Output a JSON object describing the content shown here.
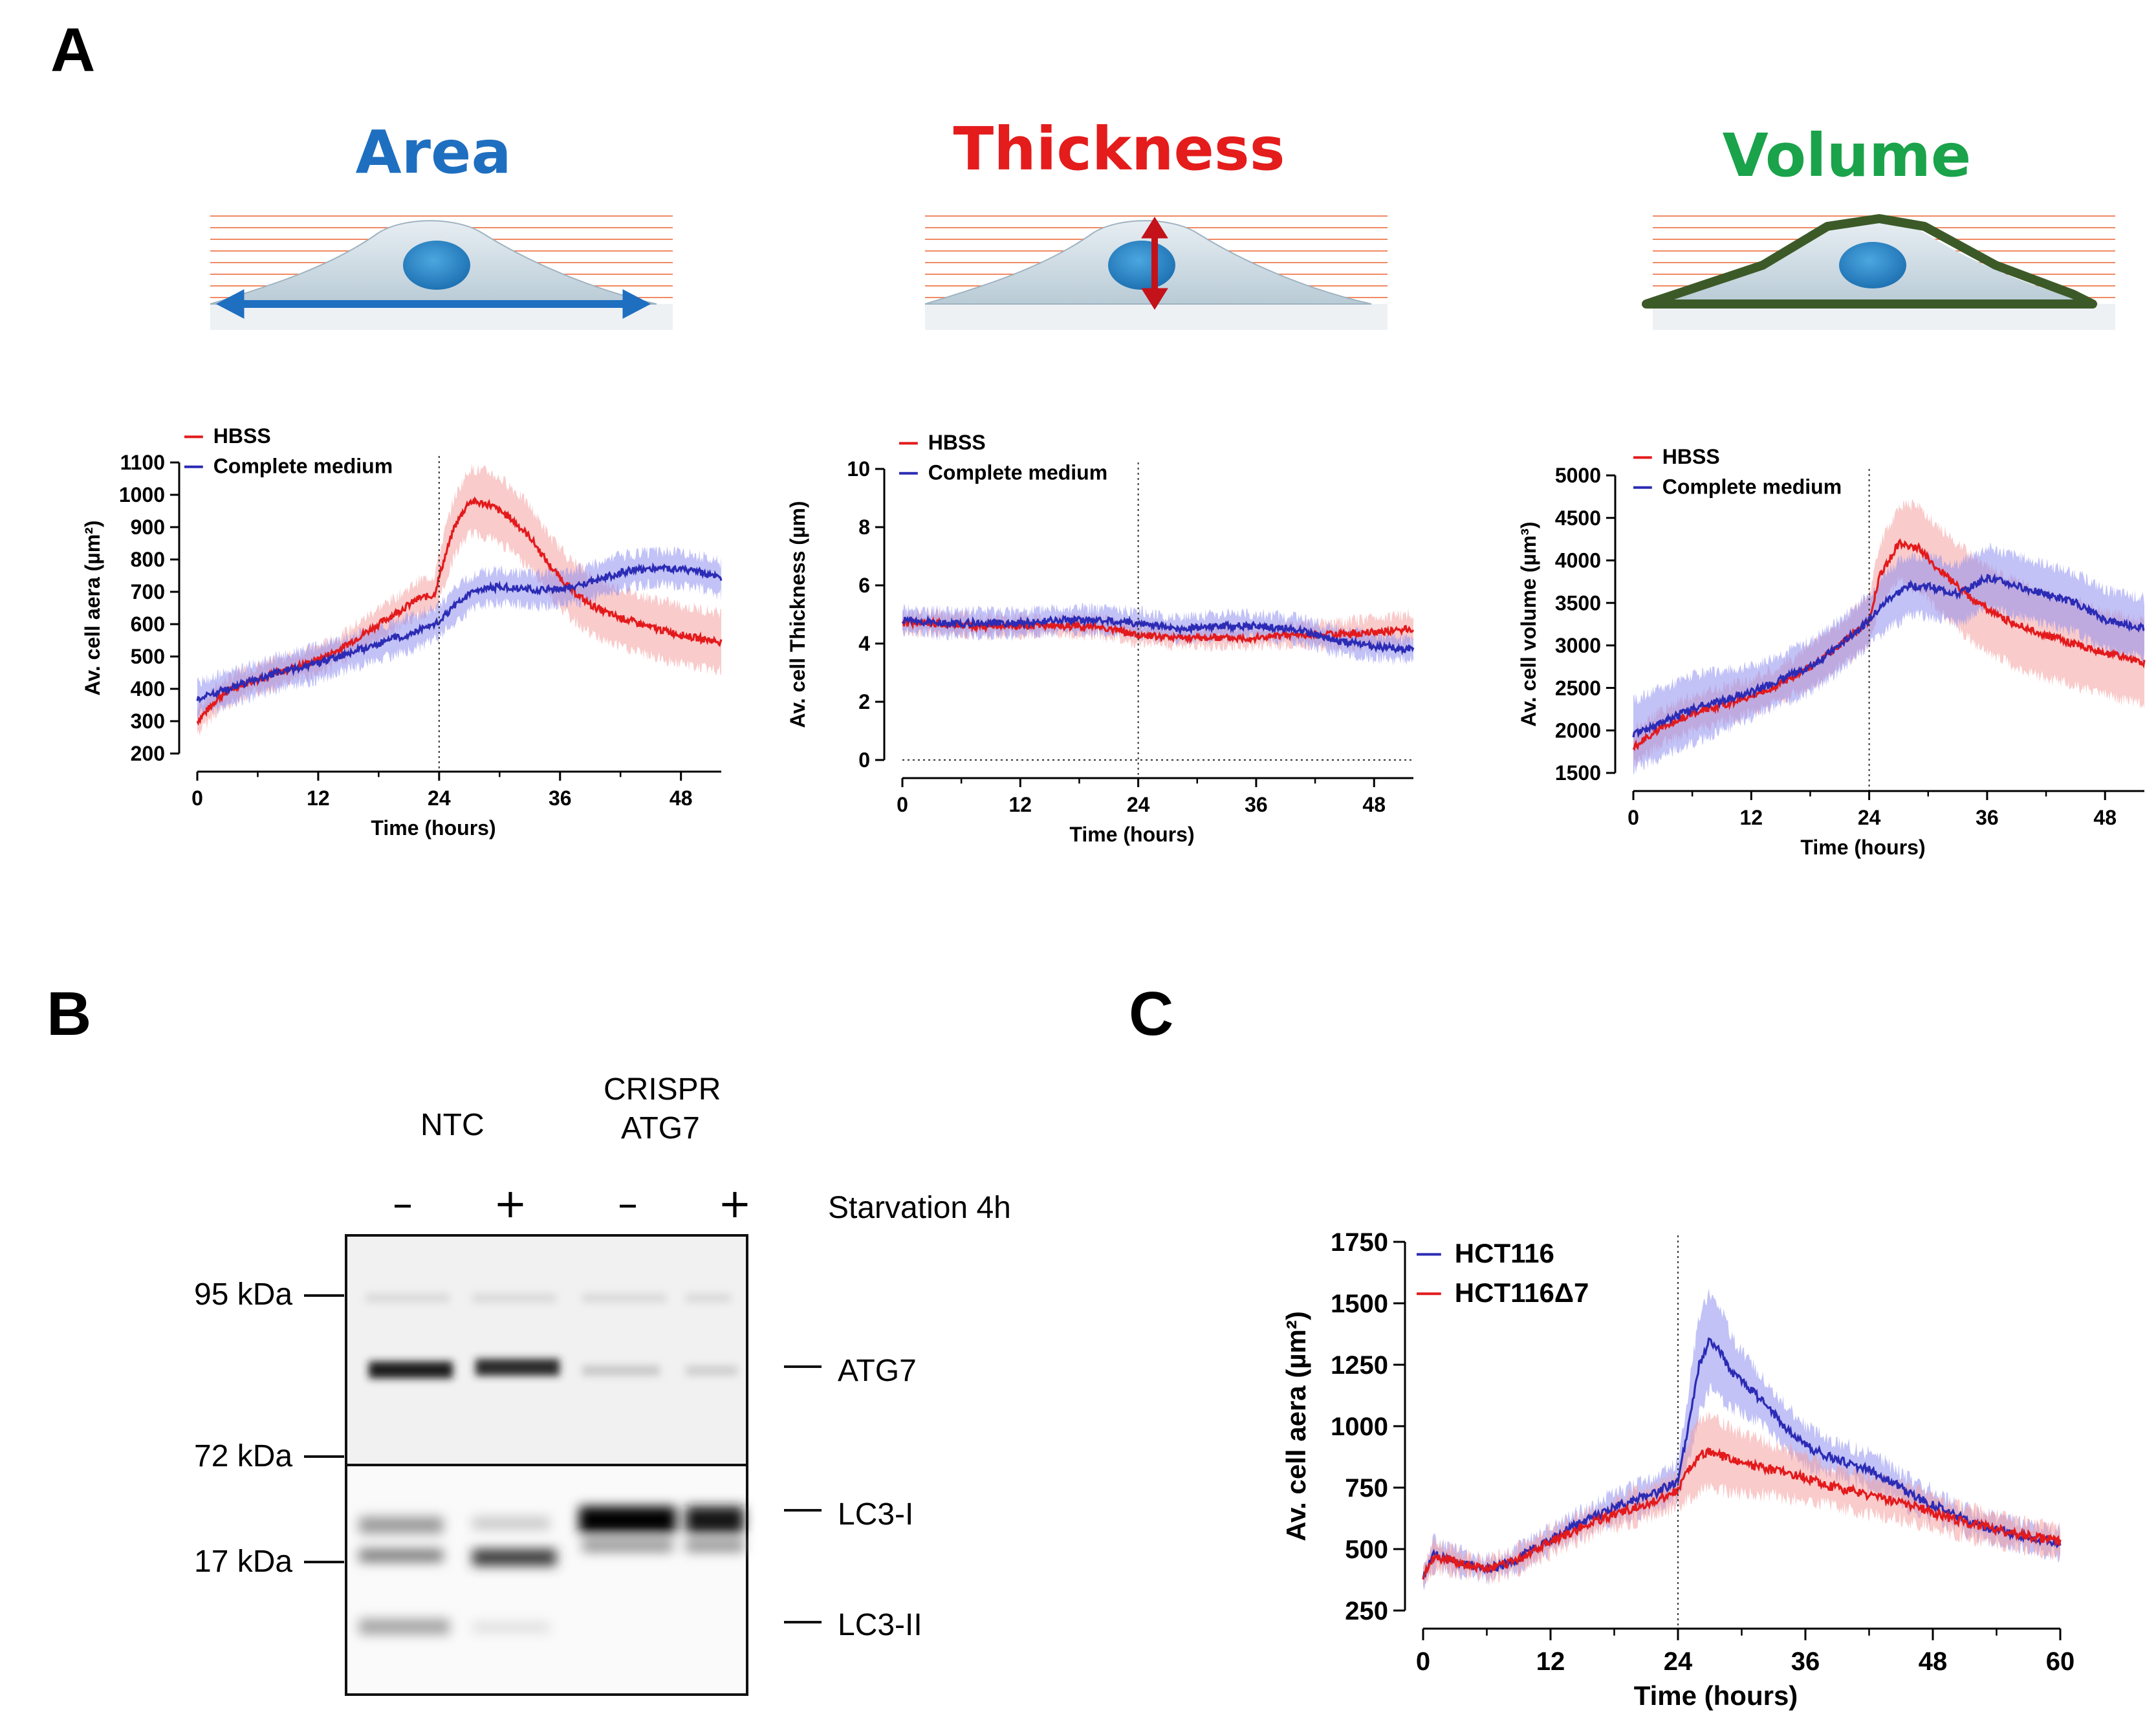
{
  "panels": {
    "a": "A",
    "b": "B",
    "c": "C"
  },
  "schematics": {
    "area_title": "Area",
    "thickness_title": "Thickness",
    "volume_title": "Volume",
    "colors": {
      "area": "#1f6fc0",
      "thickness": "#e41c1c",
      "volume": "#1aa34a",
      "outline": "#3c5a28"
    }
  },
  "blot": {
    "group1": "NTC",
    "group2_line1": "CRISPR",
    "group2_line2": "ATG7",
    "signs": [
      "–",
      "+",
      "–",
      "+"
    ],
    "treatment": "Starvation 4h",
    "markers": [
      "95 kDa",
      "72 kDa",
      "17 kDa"
    ],
    "bands": [
      "ATG7",
      "LC3-I",
      "LC3-II"
    ]
  },
  "chart_data": [
    {
      "id": "area",
      "type": "line",
      "title": "",
      "xlabel": "Time (hours)",
      "ylabel": "Av. cell aera (µm²)",
      "xlim": [
        0,
        52
      ],
      "ylim": [
        200,
        1100
      ],
      "xticks": [
        0,
        12,
        24,
        36,
        48
      ],
      "yticks": [
        200,
        300,
        400,
        500,
        600,
        700,
        800,
        900,
        1000,
        1100
      ],
      "vline": 24,
      "legend": "top-left",
      "series": [
        {
          "name": "HBSS",
          "color": "#e31a1c",
          "band_color": "#f4a0a0",
          "x": [
            0,
            2,
            4,
            6,
            8,
            10,
            12,
            14,
            16,
            18,
            20,
            22,
            23.5,
            24.5,
            25.5,
            27,
            29,
            31,
            33,
            35,
            37,
            39,
            41,
            43,
            45,
            47,
            49,
            51,
            52
          ],
          "values": [
            300,
            370,
            410,
            430,
            450,
            470,
            490,
            520,
            560,
            600,
            640,
            680,
            690,
            800,
            900,
            980,
            970,
            930,
            870,
            780,
            710,
            660,
            630,
            610,
            590,
            575,
            560,
            550,
            545
          ],
          "err": [
            40,
            40,
            40,
            40,
            40,
            40,
            40,
            40,
            45,
            50,
            50,
            55,
            60,
            80,
            90,
            100,
            100,
            100,
            95,
            90,
            90,
            90,
            90,
            90,
            90,
            90,
            90,
            90,
            90
          ]
        },
        {
          "name": "Complete medium",
          "color": "#2b2bb5",
          "band_color": "#8f8ff0",
          "x": [
            0,
            2,
            4,
            6,
            8,
            10,
            12,
            14,
            16,
            18,
            20,
            22,
            24,
            26,
            28,
            30,
            32,
            34,
            36,
            38,
            40,
            42,
            44,
            46,
            48,
            50,
            52
          ],
          "values": [
            370,
            390,
            410,
            430,
            450,
            465,
            480,
            500,
            520,
            540,
            560,
            580,
            610,
            670,
            710,
            715,
            710,
            705,
            710,
            720,
            740,
            760,
            770,
            775,
            770,
            760,
            740
          ],
          "err": [
            50,
            50,
            50,
            50,
            50,
            50,
            50,
            50,
            50,
            50,
            50,
            50,
            50,
            50,
            50,
            50,
            50,
            50,
            50,
            50,
            50,
            50,
            50,
            50,
            50,
            50,
            50
          ]
        }
      ]
    },
    {
      "id": "thickness",
      "type": "line",
      "title": "",
      "xlabel": "Time (hours)",
      "ylabel": "Av. cell Thickness (µm)",
      "xlim": [
        0,
        52
      ],
      "ylim": [
        0,
        10
      ],
      "xticks": [
        0,
        12,
        24,
        36,
        48
      ],
      "yticks": [
        0,
        2,
        4,
        6,
        8,
        10
      ],
      "vline": 24,
      "hline": 0,
      "legend": "top-left",
      "series": [
        {
          "name": "HBSS",
          "color": "#e31a1c",
          "band_color": "#f4a0a0",
          "x": [
            0,
            4,
            8,
            12,
            16,
            20,
            24,
            28,
            32,
            36,
            40,
            44,
            48,
            52
          ],
          "values": [
            4.7,
            4.7,
            4.6,
            4.6,
            4.6,
            4.6,
            4.3,
            4.2,
            4.2,
            4.2,
            4.3,
            4.3,
            4.4,
            4.5
          ],
          "err": [
            0.3,
            0.3,
            0.3,
            0.3,
            0.3,
            0.3,
            0.3,
            0.3,
            0.3,
            0.3,
            0.35,
            0.4,
            0.5,
            0.5
          ]
        },
        {
          "name": "Complete medium",
          "color": "#2b2bb5",
          "band_color": "#8f8ff0",
          "x": [
            0,
            4,
            8,
            12,
            16,
            20,
            24,
            28,
            32,
            36,
            40,
            44,
            48,
            52
          ],
          "values": [
            4.8,
            4.7,
            4.7,
            4.7,
            4.8,
            4.8,
            4.7,
            4.5,
            4.6,
            4.6,
            4.5,
            4.1,
            3.9,
            3.8
          ],
          "err": [
            0.4,
            0.4,
            0.4,
            0.4,
            0.4,
            0.4,
            0.4,
            0.4,
            0.4,
            0.4,
            0.4,
            0.4,
            0.4,
            0.4
          ]
        }
      ]
    },
    {
      "id": "volume",
      "type": "line",
      "title": "",
      "xlabel": "Time (hours)",
      "ylabel": "Av. cell volume (µm³)",
      "xlim": [
        0,
        52
      ],
      "ylim": [
        1500,
        5000
      ],
      "xticks": [
        0,
        12,
        24,
        36,
        48
      ],
      "yticks": [
        1500,
        2000,
        2500,
        3000,
        3500,
        4000,
        4500,
        5000
      ],
      "vline": 24,
      "legend": "top-left",
      "series": [
        {
          "name": "HBSS",
          "color": "#e31a1c",
          "band_color": "#f4a0a0",
          "x": [
            0,
            3,
            6,
            9,
            12,
            15,
            18,
            21,
            24,
            25,
            27,
            29,
            31,
            33,
            35,
            38,
            41,
            44,
            47,
            50,
            52
          ],
          "values": [
            1800,
            2050,
            2200,
            2300,
            2400,
            2550,
            2750,
            3000,
            3300,
            3800,
            4200,
            4150,
            3900,
            3700,
            3500,
            3300,
            3150,
            3050,
            2950,
            2850,
            2800
          ],
          "err": [
            200,
            200,
            200,
            200,
            200,
            200,
            250,
            250,
            300,
            350,
            450,
            500,
            500,
            500,
            500,
            500,
            500,
            500,
            500,
            500,
            500
          ]
        },
        {
          "name": "Complete medium",
          "color": "#2b2bb5",
          "band_color": "#8f8ff0",
          "x": [
            0,
            3,
            6,
            9,
            12,
            15,
            18,
            21,
            24,
            26,
            28,
            30,
            33,
            36,
            39,
            42,
            45,
            48,
            50,
            52
          ],
          "values": [
            1950,
            2100,
            2250,
            2350,
            2450,
            2600,
            2750,
            3000,
            3300,
            3550,
            3700,
            3700,
            3600,
            3800,
            3700,
            3600,
            3500,
            3300,
            3250,
            3200
          ],
          "err": [
            400,
            400,
            400,
            350,
            300,
            300,
            300,
            300,
            300,
            350,
            350,
            350,
            350,
            350,
            350,
            350,
            350,
            350,
            350,
            350
          ]
        }
      ]
    },
    {
      "id": "area_c",
      "type": "line",
      "title": "",
      "xlabel": "Time (hours)",
      "ylabel": "Av. cell aera (µm²)",
      "xlim": [
        0,
        60
      ],
      "ylim": [
        250,
        1750
      ],
      "xticks": [
        0,
        12,
        24,
        36,
        48,
        60
      ],
      "yticks": [
        250,
        500,
        750,
        1000,
        1250,
        1500,
        1750
      ],
      "vline": 24,
      "legend": "top-left",
      "series": [
        {
          "name": "HCT116",
          "color": "#2b2bb5",
          "band_color": "#8f8ff0",
          "x": [
            0,
            1,
            2,
            4,
            6,
            8,
            10,
            12,
            14,
            16,
            18,
            20,
            22,
            24,
            25,
            26,
            27,
            28,
            29,
            30,
            32,
            34,
            36,
            38,
            40,
            42,
            44,
            46,
            48,
            50,
            52,
            54,
            56,
            58,
            60
          ],
          "values": [
            380,
            480,
            470,
            440,
            420,
            440,
            490,
            540,
            590,
            630,
            670,
            700,
            730,
            780,
            1000,
            1250,
            1350,
            1300,
            1220,
            1180,
            1100,
            1000,
            920,
            880,
            850,
            820,
            780,
            720,
            680,
            640,
            600,
            580,
            560,
            540,
            520
          ],
          "err": [
            40,
            60,
            50,
            40,
            40,
            40,
            50,
            50,
            50,
            50,
            60,
            60,
            60,
            80,
            150,
            200,
            200,
            180,
            150,
            120,
            100,
            90,
            80,
            70,
            70,
            70,
            60,
            60,
            60,
            50,
            50,
            50,
            50,
            50,
            50
          ]
        },
        {
          "name": "HCT116Δ7",
          "color": "#e31a1c",
          "band_color": "#f4a0a0",
          "x": [
            0,
            1,
            2,
            4,
            6,
            8,
            10,
            12,
            14,
            16,
            18,
            20,
            22,
            24,
            25,
            26,
            27,
            28,
            29,
            30,
            32,
            34,
            36,
            38,
            40,
            42,
            44,
            46,
            48,
            50,
            52,
            54,
            56,
            58,
            60
          ],
          "values": [
            390,
            470,
            460,
            440,
            420,
            440,
            480,
            530,
            570,
            610,
            640,
            670,
            700,
            740,
            820,
            880,
            900,
            880,
            860,
            850,
            830,
            810,
            790,
            760,
            740,
            720,
            700,
            680,
            650,
            620,
            600,
            580,
            560,
            545,
            530
          ],
          "err": [
            40,
            50,
            50,
            40,
            40,
            40,
            50,
            50,
            50,
            50,
            50,
            60,
            60,
            70,
            120,
            150,
            150,
            140,
            130,
            120,
            110,
            100,
            90,
            80,
            80,
            80,
            70,
            70,
            60,
            60,
            60,
            60,
            50,
            50,
            50
          ]
        }
      ]
    }
  ]
}
